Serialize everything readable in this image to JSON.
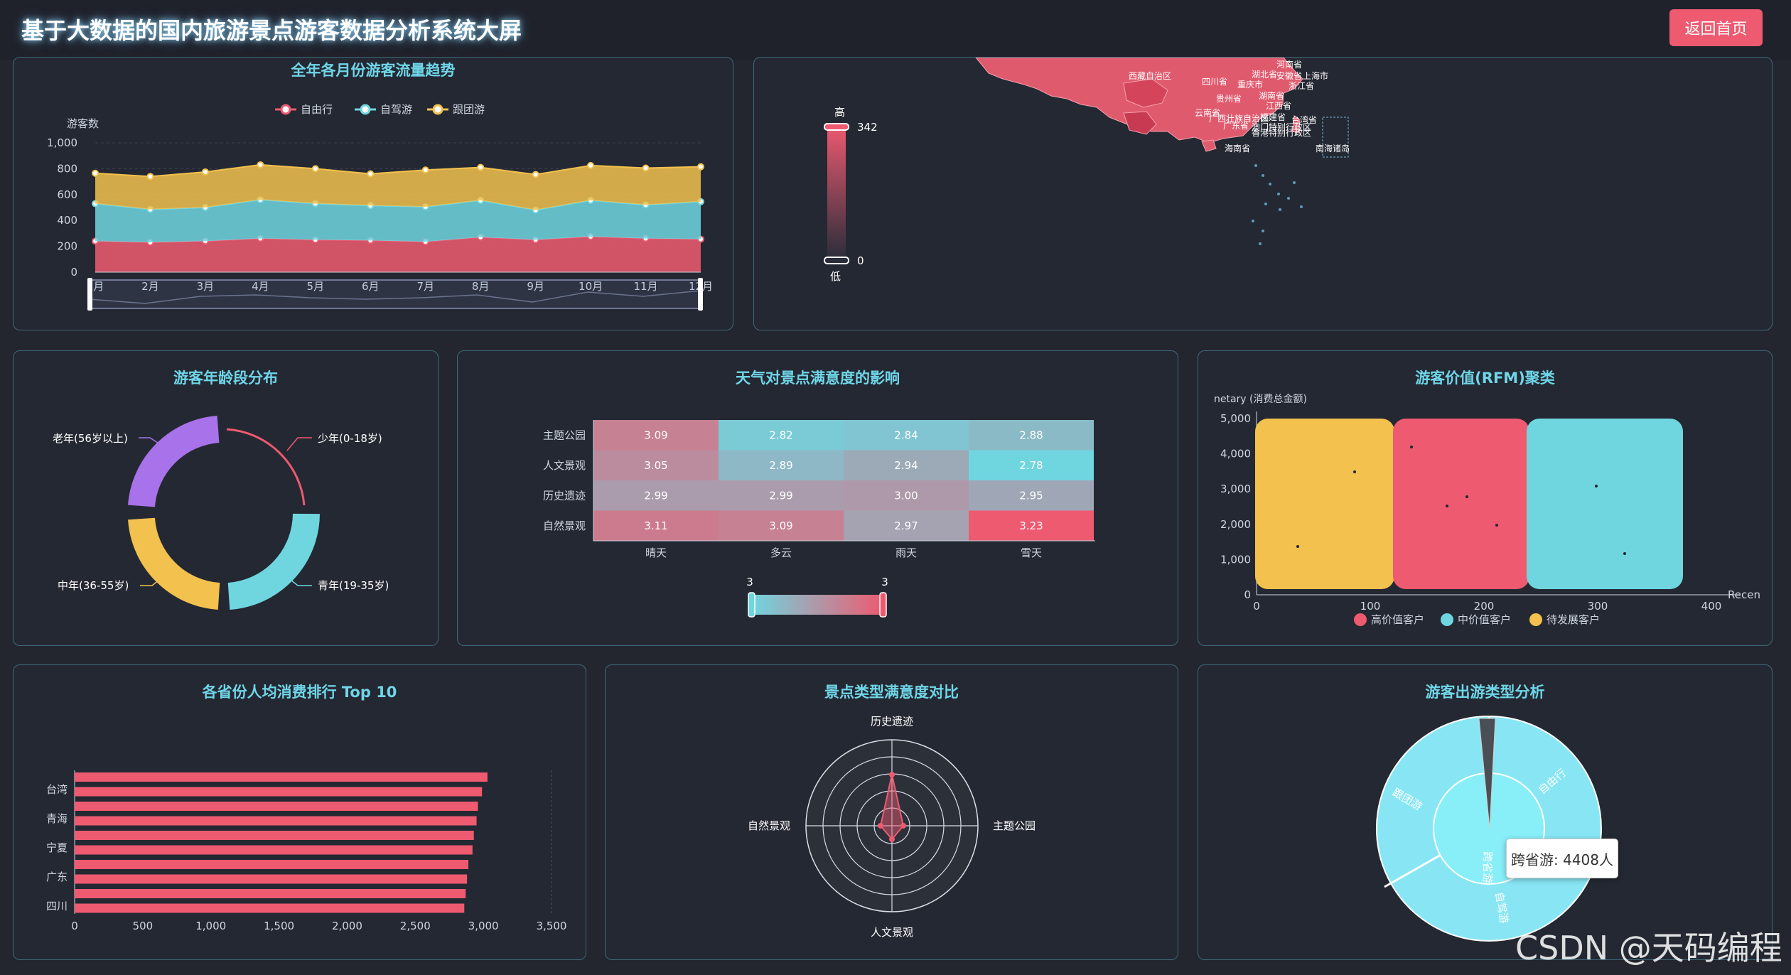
{
  "header": {
    "title": "基于大数据的国内旅游景点游客数据分析系统大屏",
    "back_label": "返回首页"
  },
  "monthly": {
    "title": "全年各月份游客流量趋势",
    "ylabel": "游客数",
    "legend": [
      "自由行",
      "自驾游",
      "跟团游"
    ],
    "yticks": [
      "1,000",
      "800",
      "600",
      "400",
      "200",
      "0"
    ],
    "months": [
      "1月",
      "2月",
      "3月",
      "4月",
      "5月",
      "6月",
      "7月",
      "8月",
      "9月",
      "10月",
      "11月",
      "12月"
    ],
    "colors": [
      "#ee5a70",
      "#6fd6e0",
      "#f2c14e"
    ]
  },
  "chart_data": [
    {
      "type": "area",
      "title": "全年各月份游客流量趋势",
      "ylabel": "游客数",
      "categories": [
        "1月",
        "2月",
        "3月",
        "4月",
        "5月",
        "6月",
        "7月",
        "8月",
        "9月",
        "10月",
        "11月",
        "12月"
      ],
      "ylim": [
        0,
        1000
      ],
      "stacked": true,
      "series": [
        {
          "name": "自由行",
          "values": [
            240,
            230,
            240,
            260,
            250,
            245,
            235,
            270,
            250,
            275,
            260,
            255
          ]
        },
        {
          "name": "自驾游",
          "values": [
            290,
            255,
            260,
            300,
            280,
            270,
            270,
            285,
            230,
            280,
            260,
            290
          ]
        },
        {
          "name": "跟团游",
          "values": [
            235,
            255,
            275,
            270,
            270,
            245,
            285,
            255,
            275,
            270,
            285,
            270
          ]
        }
      ]
    },
    {
      "type": "heatmap",
      "title": "天气对景点满意度的影响",
      "x": [
        "晴天",
        "多云",
        "雨天",
        "雪天"
      ],
      "y": [
        "主题公园",
        "人文景观",
        "历史遗迹",
        "自然景观"
      ],
      "values": [
        [
          3.09,
          2.82,
          2.84,
          2.88
        ],
        [
          3.05,
          2.89,
          2.94,
          2.78
        ],
        [
          2.99,
          2.99,
          3.0,
          2.95
        ],
        [
          3.11,
          3.09,
          2.97,
          3.23
        ]
      ]
    },
    {
      "type": "bar",
      "title": "各省份人均消费排行 Top 10",
      "categories": [
        "四川",
        "",
        "广东",
        "",
        "宁夏",
        "",
        "青海",
        "",
        "台湾",
        ""
      ],
      "values": [
        2860,
        2870,
        2880,
        2890,
        2920,
        2930,
        2950,
        2960,
        2990,
        3030
      ],
      "xlim": [
        0,
        3500
      ]
    },
    {
      "type": "pie",
      "title": "游客年龄段分布",
      "categories": [
        "少年(0-18岁)",
        "青年(19-35岁)",
        "中年(36-55岁)",
        "老年(56岁以上)"
      ],
      "values": [
        25,
        25,
        25,
        25
      ]
    },
    {
      "type": "scatter",
      "title": "游客价值(RFM)聚类",
      "xlabel": "Recen",
      "ylabel": "netary (消费总金额)",
      "xlim": [
        0,
        400
      ],
      "ylim": [
        0,
        5000
      ],
      "legend": [
        "高价值客户",
        "中价值客户",
        "待发展客户"
      ]
    },
    {
      "type": "radar",
      "title": "景点类型满意度对比",
      "indicators": [
        "历史遗迹",
        "主题公园",
        "人文景观",
        "自然景观"
      ]
    },
    {
      "type": "pie",
      "title": "游客出游类型分析",
      "categories": [
        "跨省游",
        "自由行",
        "自驾游",
        "跟团游"
      ]
    }
  ],
  "map": {
    "high": "高",
    "low": "低",
    "max": "342",
    "min": "0",
    "labels": [
      "西藏自治区",
      "四川省",
      "重庆市",
      "云南省",
      "贵州省",
      "湖南省",
      "江西省",
      "浙江省",
      "上海市",
      "安徽省",
      "河南省",
      "湖北省",
      "福建省",
      "台湾省",
      "海南省",
      "南海诸岛",
      "广东省",
      "广西壮族自治区",
      "香港特别行政区",
      "澳门特别行政区"
    ]
  },
  "age": {
    "title": "游客年龄段分布",
    "labels": [
      "老年(56岁以上)",
      "少年(0-18岁)",
      "中年(36-55岁)",
      "青年(19-35岁)"
    ]
  },
  "weather": {
    "title": "天气对景点满意度的影响",
    "rows": [
      "主题公园",
      "人文景观",
      "历史遗迹",
      "自然景观"
    ],
    "cols": [
      "晴天",
      "多云",
      "雨天",
      "雪天"
    ],
    "cells": [
      [
        "3.09",
        "2.82",
        "2.84",
        "2.88"
      ],
      [
        "3.05",
        "2.89",
        "2.94",
        "2.78"
      ],
      [
        "2.99",
        "2.99",
        "3.00",
        "2.95"
      ],
      [
        "3.11",
        "3.09",
        "2.97",
        "3.23"
      ]
    ],
    "scale_min": "3",
    "scale_max": "3"
  },
  "rfm": {
    "title": "游客价值(RFM)聚类",
    "ylabel": "netary (消费总金额)",
    "xlabel": "Recen",
    "yticks": [
      "5,000",
      "4,000",
      "3,000",
      "2,000",
      "1,000",
      "0"
    ],
    "xticks": [
      "0",
      "100",
      "200",
      "300",
      "400"
    ],
    "legend": [
      "高价值客户",
      "中价值客户",
      "待发展客户"
    ]
  },
  "province": {
    "title": "各省份人均消费排行 Top 10",
    "labels": [
      "台湾",
      "青海",
      "宁夏",
      "广东",
      "四川"
    ],
    "xticks": [
      "0",
      "500",
      "1,000",
      "1,500",
      "2,000",
      "2,500",
      "3,000",
      "3,500"
    ]
  },
  "radar": {
    "title": "景点类型满意度对比",
    "top": "历史遗迹",
    "right": "主题公园",
    "bottom": "人文景观",
    "left": "自然景观"
  },
  "travel": {
    "title": "游客出游类型分析",
    "inner": "跨省游",
    "outer": [
      "自由行",
      "自驾游",
      "跟团游"
    ],
    "tooltip": "跨省游: 4408人"
  },
  "watermark": "CSDN @天码编程"
}
